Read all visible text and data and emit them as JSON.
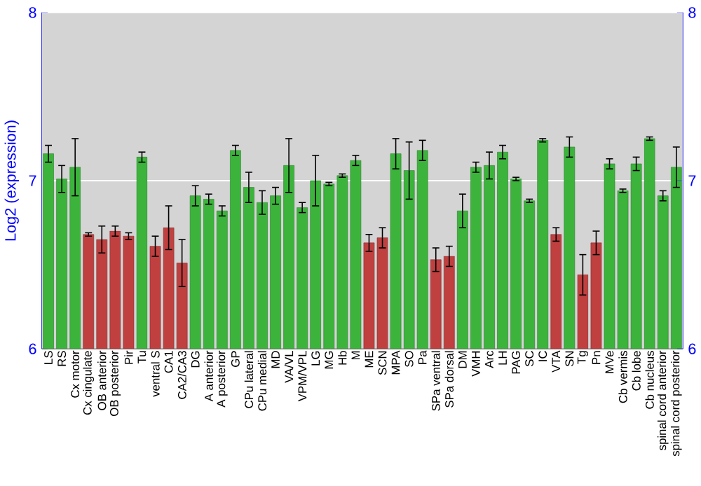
{
  "chart_data": {
    "type": "bar",
    "ylabel": "Log2 (expression)",
    "categories": [
      "LS",
      "RS",
      "Cx motor",
      "Cx cingulate",
      "OB anterior",
      "OB posterior",
      "Pir",
      "Tu",
      "ventral S",
      "CA1",
      "CA2/CA3",
      "DG",
      "A anterior",
      "A posterior",
      "GP",
      "CPu lateral",
      "CPu medial",
      "MD",
      "VA/VL",
      "VPM/VPL",
      "LG",
      "MG",
      "Hb",
      "M",
      "ME",
      "SCN",
      "MPA",
      "SO",
      "Pa",
      "SPa ventral",
      "SPa dorsal",
      "DM",
      "VMH",
      "Arc",
      "LH",
      "PAG",
      "SC",
      "IC",
      "VTA",
      "SN",
      "Tg",
      "Pn",
      "MVe",
      "Cb vermis",
      "Cb lobe",
      "Cb nucleus",
      "spinal cord anterior",
      "spinal cord posterior"
    ],
    "values": [
      7.16,
      7.01,
      7.08,
      6.68,
      6.65,
      6.7,
      6.67,
      7.14,
      6.61,
      6.72,
      6.51,
      6.91,
      6.89,
      6.82,
      7.18,
      6.96,
      6.87,
      6.91,
      7.09,
      6.84,
      7.0,
      6.98,
      7.03,
      7.12,
      6.63,
      6.66,
      7.16,
      7.06,
      7.18,
      6.53,
      6.55,
      6.82,
      7.08,
      7.09,
      7.17,
      7.01,
      6.88,
      7.24,
      6.68,
      7.2,
      6.44,
      6.63,
      7.1,
      6.94,
      7.1,
      7.25,
      6.91,
      7.08
    ],
    "errors": [
      0.05,
      0.08,
      0.17,
      0.01,
      0.08,
      0.03,
      0.02,
      0.03,
      0.06,
      0.13,
      0.14,
      0.06,
      0.03,
      0.03,
      0.03,
      0.09,
      0.07,
      0.05,
      0.16,
      0.03,
      0.15,
      0.01,
      0.01,
      0.03,
      0.05,
      0.06,
      0.09,
      0.17,
      0.06,
      0.07,
      0.06,
      0.1,
      0.03,
      0.08,
      0.04,
      0.01,
      0.01,
      0.01,
      0.04,
      0.06,
      0.12,
      0.07,
      0.03,
      0.01,
      0.04,
      0.01,
      0.03,
      0.12
    ],
    "colors": [
      "#3cb43c",
      "#3cb43c",
      "#3cb43c",
      "#c04040",
      "#c04040",
      "#c04040",
      "#c04040",
      "#3cb43c",
      "#c04040",
      "#c04040",
      "#c04040",
      "#3cb43c",
      "#3cb43c",
      "#3cb43c",
      "#3cb43c",
      "#3cb43c",
      "#3cb43c",
      "#3cb43c",
      "#3cb43c",
      "#3cb43c",
      "#3cb43c",
      "#3cb43c",
      "#3cb43c",
      "#3cb43c",
      "#c04040",
      "#c04040",
      "#3cb43c",
      "#3cb43c",
      "#3cb43c",
      "#c04040",
      "#c04040",
      "#3cb43c",
      "#3cb43c",
      "#3cb43c",
      "#3cb43c",
      "#3cb43c",
      "#3cb43c",
      "#3cb43c",
      "#c04040",
      "#3cb43c",
      "#c04040",
      "#c04040",
      "#3cb43c",
      "#3cb43c",
      "#3cb43c",
      "#3cb43c",
      "#3cb43c",
      "#3cb43c"
    ],
    "ylim": [
      6,
      8
    ],
    "yticks": [
      6,
      7,
      8
    ],
    "y2lim": [
      6,
      8
    ],
    "y2ticks": [
      6,
      7,
      8
    ],
    "grid": "y"
  }
}
